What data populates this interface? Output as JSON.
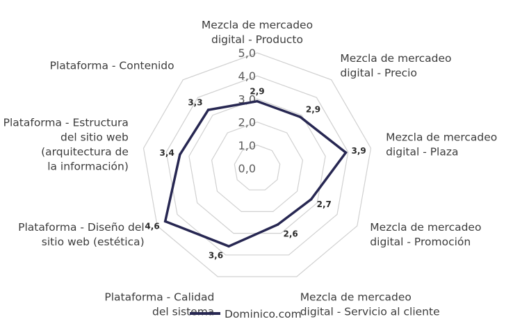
{
  "chart_data": {
    "type": "radar",
    "categories": [
      [
        "Mezcla de mercadeo",
        "digital - Producto"
      ],
      [
        "Mezcla de mercadeo",
        "digital - Precio"
      ],
      [
        "Mezcla de mercadeo",
        "digital - Plaza"
      ],
      [
        "Mezcla de mercadeo",
        "digital - Promoción"
      ],
      [
        "Mezcla de mercadeo",
        "digital - Servicio al cliente"
      ],
      [
        "Plataforma - Calidad",
        "del sistema"
      ],
      [
        "Plataforma - Diseño del",
        "sitio web (estética)"
      ],
      [
        "Plataforma - Estructura",
        "del sitio web",
        "(arquitectura de",
        "la información)"
      ],
      [
        "Plataforma - Contenido"
      ]
    ],
    "series": [
      {
        "name": "Dominico.com",
        "values": [
          2.9,
          2.9,
          3.9,
          2.7,
          2.6,
          3.6,
          4.6,
          3.4,
          3.3
        ],
        "data_labels": [
          "2,9",
          "2,9",
          "3,9",
          "2,7",
          "2,6",
          "3,6",
          "4,6",
          "3,4",
          "3,3"
        ]
      }
    ],
    "rlim": [
      0,
      5
    ],
    "ticks": [
      0,
      1,
      2,
      3,
      4,
      5
    ],
    "tick_labels": [
      "0,0",
      "1,0",
      "2,0",
      "3,0",
      "4,0",
      "5,0"
    ],
    "grid": true,
    "legend_position": "bottom",
    "colors": {
      "series": "#272752",
      "grid": "#d0d0d0",
      "text": "#3c3c3c"
    }
  }
}
